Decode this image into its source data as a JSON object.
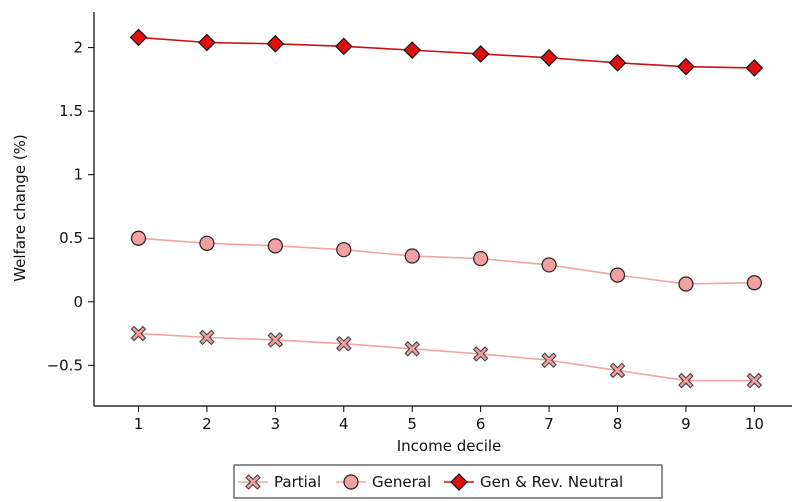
{
  "chart_data": {
    "type": "line",
    "xlabel": "Income decile",
    "ylabel": "Welfare change (%)",
    "x": [
      1,
      2,
      3,
      4,
      5,
      6,
      7,
      8,
      9,
      10
    ],
    "xlim": [
      0.35,
      10.55
    ],
    "ylim": [
      -0.82,
      2.28
    ],
    "x_ticks": [
      "1",
      "2",
      "3",
      "4",
      "5",
      "6",
      "7",
      "8",
      "9",
      "10"
    ],
    "y_ticks": [
      -0.5,
      0,
      0.5,
      1,
      1.5,
      2
    ],
    "y_tick_labels": [
      "−0.5",
      "0",
      "0.5",
      "1",
      "1.5",
      "2"
    ],
    "grid": false,
    "legend_position": "bottom-center",
    "series": [
      {
        "name": "Partial",
        "marker": "x-icon",
        "line_color": "#f4a3a3",
        "marker_fill": "#f2a0a0",
        "values": [
          -0.25,
          -0.28,
          -0.3,
          -0.33,
          -0.37,
          -0.41,
          -0.46,
          -0.54,
          -0.62,
          -0.62
        ]
      },
      {
        "name": "General",
        "marker": "circle-icon",
        "line_color": "#f4a3a3",
        "marker_fill": "#f2a0a0",
        "values": [
          0.5,
          0.46,
          0.44,
          0.41,
          0.36,
          0.34,
          0.29,
          0.21,
          0.14,
          0.15
        ]
      },
      {
        "name": "Gen & Rev. Neutral",
        "marker": "diamond-icon",
        "line_color": "#cc1010",
        "marker_fill": "#e01010",
        "values": [
          2.08,
          2.04,
          2.03,
          2.01,
          1.98,
          1.95,
          1.92,
          1.88,
          1.85,
          1.84
        ]
      }
    ]
  }
}
